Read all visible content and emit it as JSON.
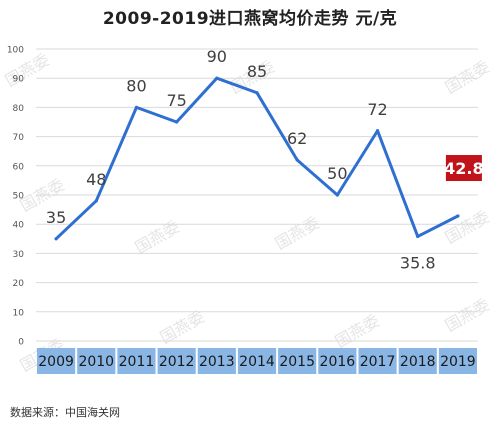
{
  "title": "2009-2019进口燕窝均价走势  元/克",
  "source": "数据来源：中国海关网",
  "watermark": "国燕委",
  "colors": {
    "line": "#2f6fd1",
    "grid": "#d9d9d9",
    "axis_text": "#555555",
    "label_text": "#404040",
    "xband": "#8ab6e6",
    "highlight_bg": "#c0141a",
    "highlight_text": "#ffffff",
    "watermark": "#cfcfcf"
  },
  "chart_data": {
    "type": "line",
    "title": "2009-2019进口燕窝均价走势  元/克",
    "categories": [
      "2009",
      "2010",
      "2011",
      "2012",
      "2013",
      "2014",
      "2015",
      "2016",
      "2017",
      "2018",
      "2019"
    ],
    "series": [
      {
        "values": [
          35,
          48,
          80,
          75,
          90,
          85,
          62,
          50,
          72,
          35.8,
          42.8
        ]
      }
    ],
    "data_labels": [
      "35",
      "48",
      "80",
      "75",
      "90",
      "85",
      "62",
      "50",
      "72",
      "35.8",
      "42.8"
    ],
    "highlight_label": "42.8",
    "ylim": [
      0,
      100
    ],
    "yticks": [
      0,
      10,
      20,
      30,
      40,
      50,
      60,
      70,
      80,
      90,
      100
    ],
    "xlabel": "",
    "ylabel": "",
    "grid": true,
    "legend": "none"
  }
}
